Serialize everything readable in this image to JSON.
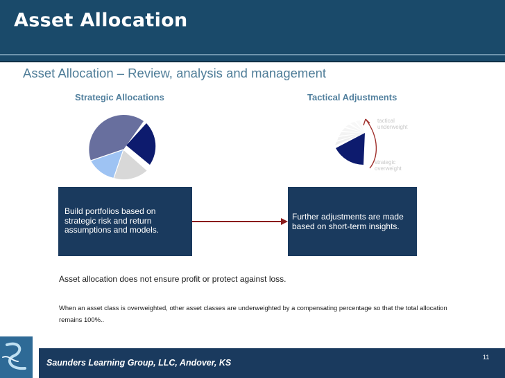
{
  "slide": {
    "title": "Asset Allocation",
    "subtitle": "Asset Allocation – Review, analysis and management",
    "left_heading": "Strategic Allocations",
    "right_heading": "Tactical Adjustments",
    "tactical_labels": {
      "top": [
        "tactical",
        "underweight"
      ],
      "bottom": [
        "strategic",
        "overweight"
      ]
    },
    "left_box": [
      "Build portfolios based on",
      "strategic risk and return",
      "assumptions and models."
    ],
    "right_box": [
      "Further adjustments are made",
      "based on short-term insights."
    ],
    "disclaimer": "Asset allocation does not ensure profit or protect against loss.",
    "footnote": "When an asset class is overweighted, other asset classes are underweighted by a compensating percentage so that the total allocation remains 100%..",
    "footer": "Saunders Learning Group, LLC, Andover, KS",
    "page_number": "11"
  },
  "colors": {
    "title_bar": "#1a4a6a",
    "dark_navy": "#1a3a5e",
    "pie_purple": "#686f9e",
    "pie_navy": "#0d1b6e",
    "pie_lightblue": "#9ec3f3",
    "pie_gray": "#d8d8d8",
    "arrow_red": "#8a1b1b",
    "heading_blue": "#52809e"
  },
  "icons": {
    "logo": "stylized-s-logo-icon",
    "connector": "right-arrow-icon",
    "curved_arrow": "curved-arrow-icon"
  }
}
